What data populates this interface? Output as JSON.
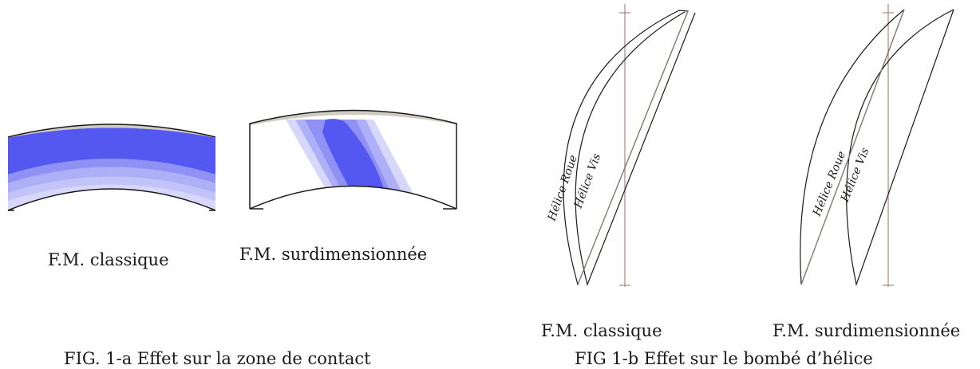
{
  "figure_a": {
    "caption": "FIG. 1-a Effet sur la zone de contact",
    "panel_classic": {
      "label": "F.M. classique"
    },
    "panel_oversized": {
      "label": "F.M. surdimensionnée"
    },
    "colors": {
      "tooth_tip": "#cfcbc3",
      "contact_dark": "#5457f0",
      "contact_mid": "#7f82f3",
      "contact_light": "#aeb0f7",
      "contact_pale": "#d6d7fb",
      "outline": "#1a1a1a"
    }
  },
  "figure_b": {
    "caption": "FIG 1-b Effet sur le bombé d’hélice",
    "panel_classic": {
      "label": "F.M. classique",
      "wheel_helix": "Hélice Roue",
      "worm_helix": "Hélice Vis"
    },
    "panel_oversized": {
      "label": "F.M. surdimensionnée",
      "wheel_helix": "Hélice Roue",
      "worm_helix": "Hélice Vis"
    },
    "colors": {
      "axis": "#a08a86",
      "helix": "#1a1a1a"
    }
  }
}
